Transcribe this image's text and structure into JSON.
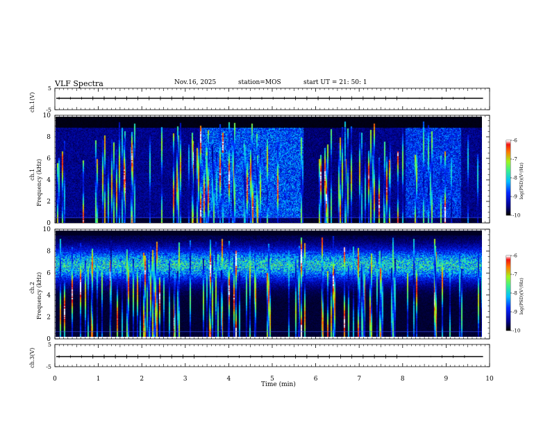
{
  "header": {
    "title": "VLF Spectra",
    "date": "Nov.16, 2025",
    "station": "station=MOS",
    "start": "start  UT  =   21: 50: 1"
  },
  "chart_data": [
    {
      "type": "line",
      "name_label": "ch.1(V)",
      "ylim": [
        -5,
        5
      ],
      "yticks": [
        "5",
        "-5"
      ],
      "level": 0
    },
    {
      "type": "heatmap",
      "ylabel_top": "ch.1",
      "ylabel": "Frequency (kHz)",
      "ylim": [
        0,
        10
      ],
      "yticks": [
        "0",
        "2",
        "4",
        "6",
        "8",
        "10"
      ],
      "colorbar": {
        "label": "log(PSD)(V²/Hz)",
        "range": [
          -10,
          -6
        ],
        "ticks": [
          "-6",
          "-7",
          "-8",
          "-9",
          "-10"
        ]
      }
    },
    {
      "type": "heatmap",
      "ylabel_top": "ch.2",
      "ylabel": "Frequency (kHz)",
      "ylim": [
        0,
        10
      ],
      "yticks": [
        "0",
        "2",
        "4",
        "6",
        "8",
        "10"
      ],
      "colorbar": {
        "label": "log(PSD)(V²/Hz)",
        "range": [
          -10,
          -6
        ],
        "ticks": [
          "-6",
          "-7",
          "-8",
          "-9",
          "-10"
        ]
      }
    },
    {
      "type": "line",
      "name_label": "ch.3(V)",
      "ylim": [
        -5,
        5
      ],
      "yticks": [
        "5",
        "-5"
      ],
      "level": 0
    }
  ],
  "xaxis": {
    "label": "Time (min)",
    "range": [
      0,
      10
    ],
    "ticks": [
      "0",
      "1",
      "2",
      "3",
      "4",
      "5",
      "6",
      "7",
      "8",
      "9",
      "10"
    ]
  }
}
